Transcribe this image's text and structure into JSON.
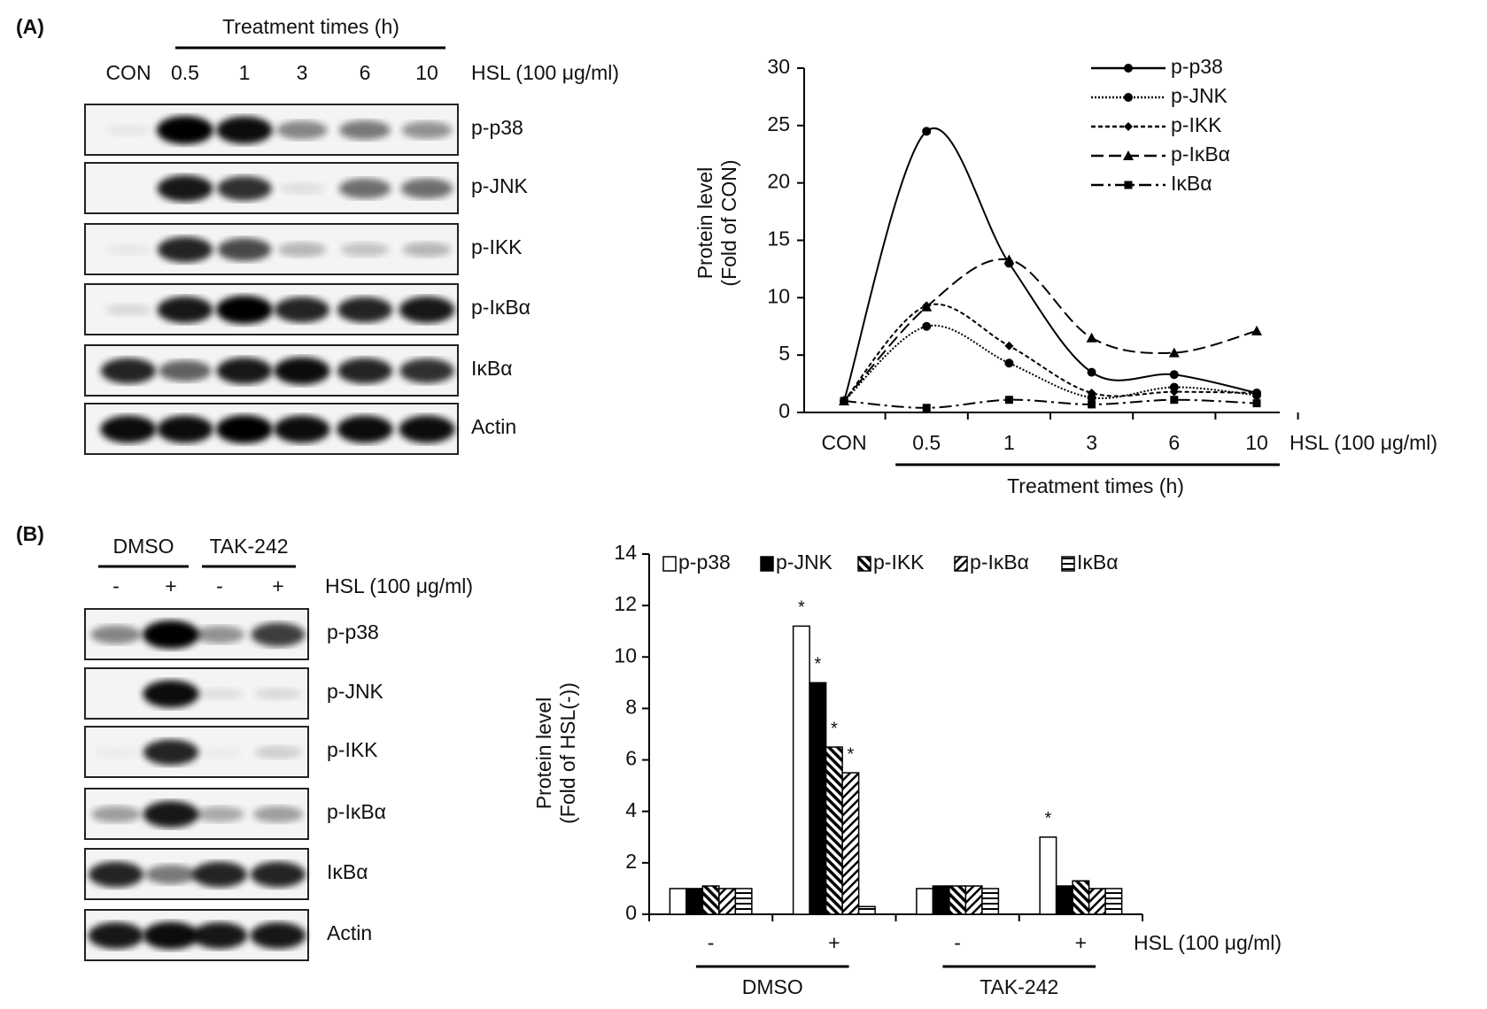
{
  "blots": [
    {
      "label": "(A)",
      "header": "Treatment times (h)",
      "lanes": [
        "CON",
        "0.5",
        "1",
        "3",
        "6",
        "10"
      ],
      "treatment": "HSL (100 μg/ml)",
      "rows": [
        "p-p38",
        "p-JNK",
        "p-IKK",
        "p-IκBα",
        "IκBα",
        "Actin"
      ]
    },
    {
      "label": "(B)",
      "groups": [
        "DMSO",
        "TAK-242"
      ],
      "lanes": [
        "-",
        "+",
        "-",
        "+"
      ],
      "treatment": "HSL (100 μg/ml)",
      "rows": [
        "p-p38",
        "p-JNK",
        "p-IKK",
        "p-IκBα",
        "IκBα",
        "Actin"
      ]
    }
  ],
  "chart_data": [
    {
      "type": "line",
      "y_label": [
        "Protein level",
        "(Fold of CON)"
      ],
      "x_label": "Treatment times (h)",
      "treatment": "HSL (100 μg/ml)",
      "categories": [
        "CON",
        "0.5",
        "1",
        "3",
        "6",
        "10"
      ],
      "series": [
        {
          "name": "p-p38",
          "color": "#000000",
          "dash": "solid",
          "marker": "circle",
          "values": [
            1,
            24.5,
            13,
            3.5,
            3.3,
            1.7
          ]
        },
        {
          "name": "p-JNK",
          "color": "#000000",
          "dash": "dotted",
          "marker": "circle",
          "values": [
            1,
            7.5,
            4.3,
            1.3,
            2.2,
            1.5
          ]
        },
        {
          "name": "p-IKK",
          "color": "#000000",
          "dash": "dashed",
          "marker": "diamond",
          "values": [
            1,
            9.3,
            5.8,
            1.7,
            1.8,
            1.7
          ]
        },
        {
          "name": "p-IκBα",
          "color": "#000000",
          "dash": "long-dashed",
          "marker": "triangle",
          "values": [
            1,
            9.2,
            13.3,
            6.5,
            5.2,
            7.1
          ]
        },
        {
          "name": "IκBα",
          "color": "#000000",
          "dash": "dash-dot",
          "marker": "square",
          "values": [
            1,
            0.4,
            1.1,
            0.7,
            1.1,
            0.8
          ]
        }
      ],
      "ylim": [
        0,
        30
      ],
      "yticks": [
        0,
        5,
        10,
        15,
        20,
        25,
        30
      ]
    },
    {
      "type": "bar",
      "y_label": [
        "Protein level",
        "(Fold of HSL(-))"
      ],
      "treatment": "HSL (100 μg/ml)",
      "categories": [
        "-",
        "+",
        "-",
        "+"
      ],
      "groups": [
        "DMSO",
        "TAK-242"
      ],
      "series": [
        {
          "name": "p-p38",
          "color": "#ffffff",
          "values": [
            1,
            11.2,
            1,
            3.0
          ],
          "markers": [
            null,
            "*",
            null,
            "*"
          ]
        },
        {
          "name": "p-JNK",
          "color": "#000000",
          "values": [
            1,
            9.0,
            1.1,
            1.1
          ],
          "markers": [
            null,
            "*",
            null,
            null
          ]
        },
        {
          "name": "p-IKK",
          "color": "#000000",
          "pattern": "backslash",
          "values": [
            1.1,
            6.5,
            1.1,
            1.3
          ],
          "markers": [
            null,
            "*",
            null,
            null
          ]
        },
        {
          "name": "p-IκBα",
          "color": "#000000",
          "pattern": "slash",
          "values": [
            1,
            5.5,
            1.1,
            1.0
          ],
          "markers": [
            null,
            "*",
            null,
            null
          ]
        },
        {
          "name": "IκBα",
          "color": "#000000",
          "pattern": "horizontal",
          "values": [
            1,
            0.3,
            1.0,
            1.0
          ]
        }
      ],
      "ylim": [
        0,
        14
      ],
      "yticks": [
        0,
        2,
        4,
        6,
        8,
        10,
        12,
        14
      ]
    }
  ]
}
